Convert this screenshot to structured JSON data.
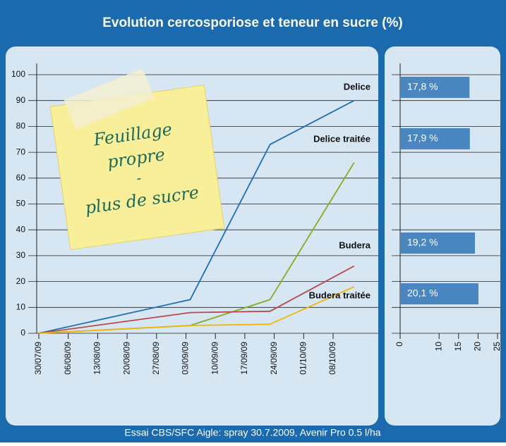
{
  "title": "Evolution cercosporiose et teneur en sucre (%)",
  "footer": "Essai CBS/SFC Aigle: spray 30.7.2009, Avenir Pro 0.5 l/ha",
  "sticky_note": [
    "Feuillage",
    "propre",
    "-",
    "plus de sucre"
  ],
  "chart_data": [
    {
      "type": "line",
      "x": [
        "30/07/09",
        "04/09/09",
        "23/09/09",
        "13/10/09"
      ],
      "xticks": [
        "30/07/09",
        "06/08/09",
        "13/08/09",
        "20/08/09",
        "27/08/09",
        "03/09/09",
        "10/09/09",
        "17/09/09",
        "24/09/09",
        "01/10/09",
        "08/10/09"
      ],
      "ylim": [
        0,
        100
      ],
      "yticks": [
        0,
        10,
        20,
        30,
        40,
        50,
        60,
        70,
        80,
        90,
        100
      ],
      "grid": true,
      "series": [
        {
          "name": "Delice",
          "color": "#1f6fb2",
          "values": [
            0,
            13,
            73,
            90
          ]
        },
        {
          "name": "Delice traitée",
          "color": "#8aab1e",
          "values": [
            0,
            3,
            13,
            66
          ]
        },
        {
          "name": "Budera",
          "color": "#b84a4a",
          "values": [
            0,
            8,
            8.5,
            26
          ]
        },
        {
          "name": "Budera traitée",
          "color": "#f2b500",
          "values": [
            0,
            3,
            3.5,
            18
          ]
        }
      ]
    },
    {
      "type": "hbar",
      "values": [
        17.8,
        17.9,
        19.2,
        20.1
      ],
      "value_labels": [
        "17,8 %",
        "17,9 %",
        "19,2 %",
        "20,1 %"
      ],
      "color": "#4a86c0",
      "xlim": [
        0,
        25
      ],
      "xticks": [
        0,
        10,
        15,
        20,
        25
      ],
      "grid": true
    }
  ]
}
